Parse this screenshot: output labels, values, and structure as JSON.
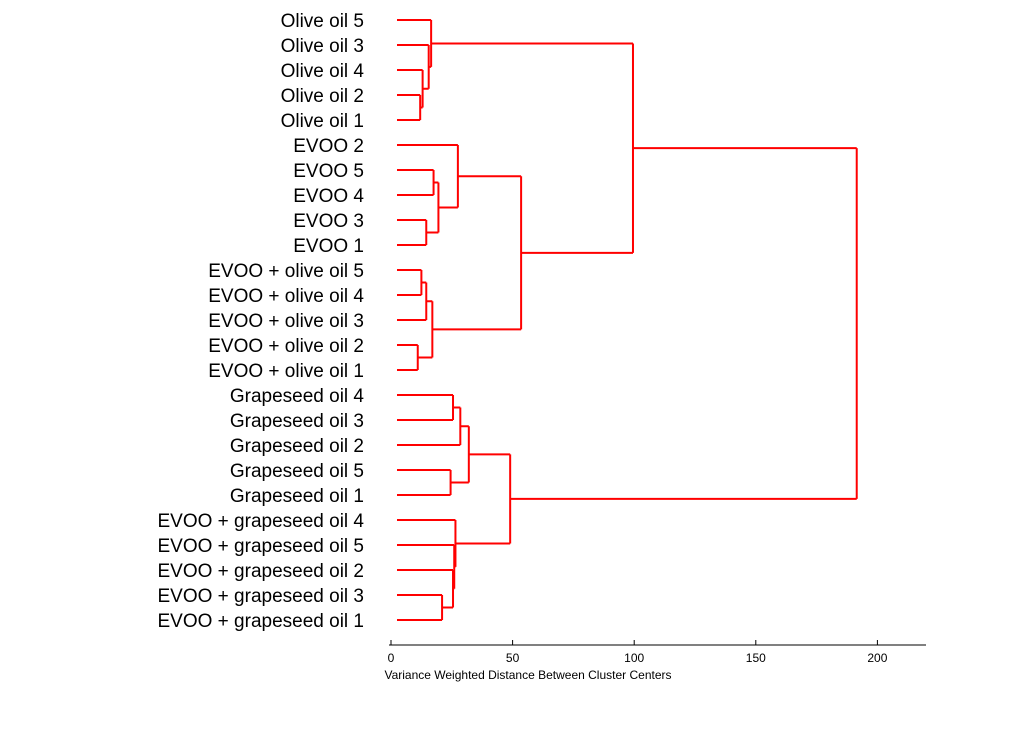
{
  "chart_data": {
    "type": "dendrogram",
    "orientation": "horizontal",
    "xlabel": "Variance Weighted Distance Between Cluster Centers",
    "xlim": [
      0,
      220
    ],
    "xticks": [
      0,
      50,
      100,
      150,
      200
    ],
    "grid": false,
    "line_color": "#ff0000",
    "leaves": [
      "Olive oil 5",
      "Olive oil 3",
      "Olive oil 4",
      "Olive oil 2",
      "Olive oil 1",
      "EVOO 2",
      "EVOO 5",
      "EVOO 4",
      "EVOO 3",
      "EVOO 1",
      "EVOO + olive oil  5",
      "EVOO + olive oil  4",
      "EVOO + olive oil  3",
      "EVOO + olive oil  2",
      "EVOO + olive oil  1",
      "Grapeseed oil 4",
      "Grapeseed oil 3",
      "Grapeseed oil 2",
      "Grapeseed oil 5",
      "Grapeseed oil 1",
      "EVOO + grapeseed oil 4",
      "EVOO + grapeseed oil 5",
      "EVOO + grapeseed oil 2",
      "EVOO + grapeseed oil 3",
      "EVOO + grapeseed oil 1"
    ],
    "merges": [
      {
        "id": "n1",
        "children": [
          "Olive oil 2",
          "Olive oil 1"
        ],
        "height": 12
      },
      {
        "id": "n2",
        "children": [
          "Olive oil 4",
          "n1"
        ],
        "height": 13
      },
      {
        "id": "n3",
        "children": [
          "Olive oil 3",
          "n2"
        ],
        "height": 15.5
      },
      {
        "id": "n4",
        "children": [
          "Olive oil 5",
          "n3"
        ],
        "height": 16.5
      },
      {
        "id": "n5",
        "children": [
          "EVOO 3",
          "EVOO 1"
        ],
        "height": 14.5
      },
      {
        "id": "n6",
        "children": [
          "EVOO 5",
          "EVOO 4"
        ],
        "height": 17.5
      },
      {
        "id": "n7",
        "children": [
          "n6",
          "n5"
        ],
        "height": 19.5
      },
      {
        "id": "n8",
        "children": [
          "EVOO 2",
          "n7"
        ],
        "height": 27.5
      },
      {
        "id": "n9",
        "children": [
          "EVOO + olive oil  5",
          "EVOO + olive oil  4"
        ],
        "height": 12.5
      },
      {
        "id": "n10",
        "children": [
          "n9",
          "EVOO + olive oil  3"
        ],
        "height": 14.5
      },
      {
        "id": "n11",
        "children": [
          "EVOO + olive oil  2",
          "EVOO + olive oil  1"
        ],
        "height": 11
      },
      {
        "id": "n12",
        "children": [
          "n10",
          "n11"
        ],
        "height": 17
      },
      {
        "id": "n13",
        "children": [
          "n8",
          "n12"
        ],
        "height": 53.5
      },
      {
        "id": "n14",
        "children": [
          "n4",
          "n13"
        ],
        "height": 99.5
      },
      {
        "id": "n15",
        "children": [
          "Grapeseed oil 4",
          "Grapeseed oil 3"
        ],
        "height": 25.5
      },
      {
        "id": "n16",
        "children": [
          "n15",
          "Grapeseed oil 2"
        ],
        "height": 28.5
      },
      {
        "id": "n17",
        "children": [
          "Grapeseed oil 5",
          "Grapeseed oil 1"
        ],
        "height": 24.5
      },
      {
        "id": "n18",
        "children": [
          "n16",
          "n17"
        ],
        "height": 32
      },
      {
        "id": "n19",
        "children": [
          "EVOO + grapeseed oil 3",
          "EVOO + grapeseed oil 1"
        ],
        "height": 21
      },
      {
        "id": "n20",
        "children": [
          "EVOO + grapeseed oil 2",
          "n19"
        ],
        "height": 25.5
      },
      {
        "id": "n21",
        "children": [
          "EVOO + grapeseed oil 5",
          "n20"
        ],
        "height": 26
      },
      {
        "id": "n22",
        "children": [
          "EVOO + grapeseed oil 4",
          "n21"
        ],
        "height": 26.5
      },
      {
        "id": "n23",
        "children": [
          "n18",
          "n22"
        ],
        "height": 49
      },
      {
        "id": "n24",
        "children": [
          "n14",
          "n23"
        ],
        "height": 191.5
      }
    ]
  }
}
